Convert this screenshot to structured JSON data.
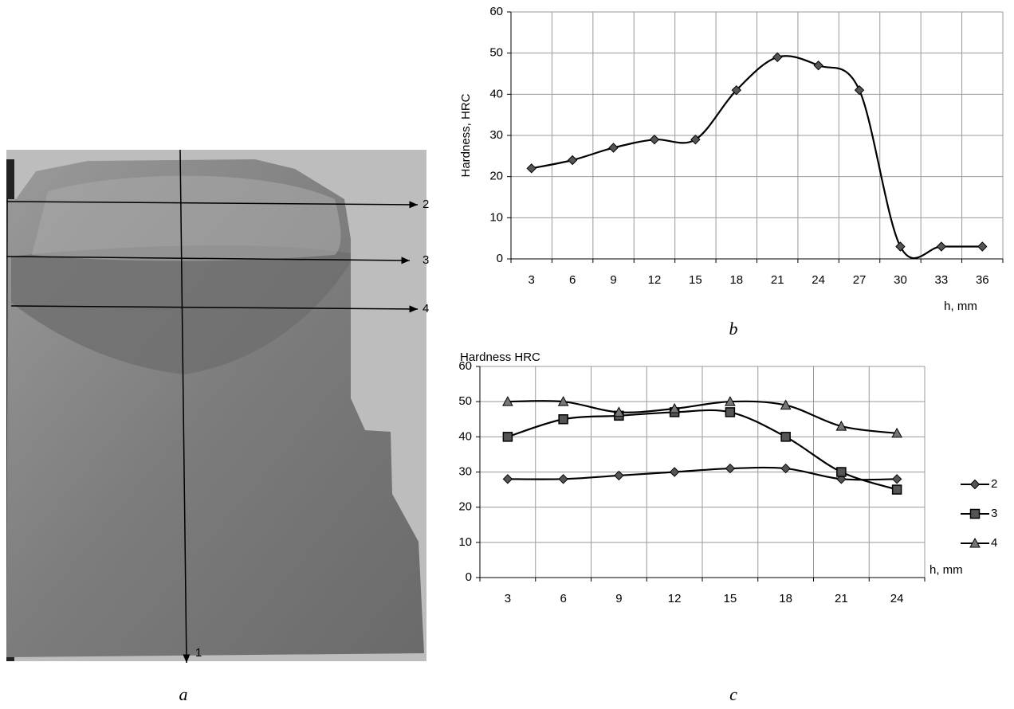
{
  "photo": {
    "line_labels": [
      "2",
      "3",
      "4",
      "1"
    ],
    "caption": "a"
  },
  "chart_data": [
    {
      "type": "line",
      "caption": "b",
      "y_label": "Hardness, HRC",
      "x_label": "h, mm",
      "categories": [
        "3",
        "6",
        "9",
        "12",
        "15",
        "18",
        "21",
        "24",
        "27",
        "30",
        "33",
        "36"
      ],
      "values": [
        22,
        24,
        27,
        29,
        29,
        41,
        49,
        47,
        41,
        3,
        3,
        3
      ],
      "color": "#000000",
      "marker": "diamond",
      "smooth": true,
      "ylim": [
        0,
        60
      ],
      "yticks": [
        0,
        10,
        20,
        30,
        40,
        50,
        60
      ],
      "grid": true
    },
    {
      "type": "line",
      "caption": "c",
      "title": "Hardness HRC",
      "x_label": "h, mm",
      "categories": [
        "3",
        "6",
        "9",
        "12",
        "15",
        "18",
        "21",
        "24"
      ],
      "series": [
        {
          "name": "2",
          "color": "#000000",
          "marker": "diamond",
          "values": [
            28,
            28,
            29,
            30,
            31,
            31,
            28,
            28
          ]
        },
        {
          "name": "3",
          "color": "#000000",
          "marker": "square",
          "values": [
            40,
            45,
            46,
            47,
            47,
            40,
            30,
            25
          ]
        },
        {
          "name": "4",
          "color": "#000000",
          "marker": "triangle",
          "values": [
            50,
            50,
            47,
            48,
            50,
            49,
            43,
            41
          ]
        }
      ],
      "smooth": true,
      "legend": "right",
      "ylim": [
        0,
        60
      ],
      "yticks": [
        0,
        10,
        20,
        30,
        40,
        50,
        60
      ],
      "grid": true
    }
  ]
}
